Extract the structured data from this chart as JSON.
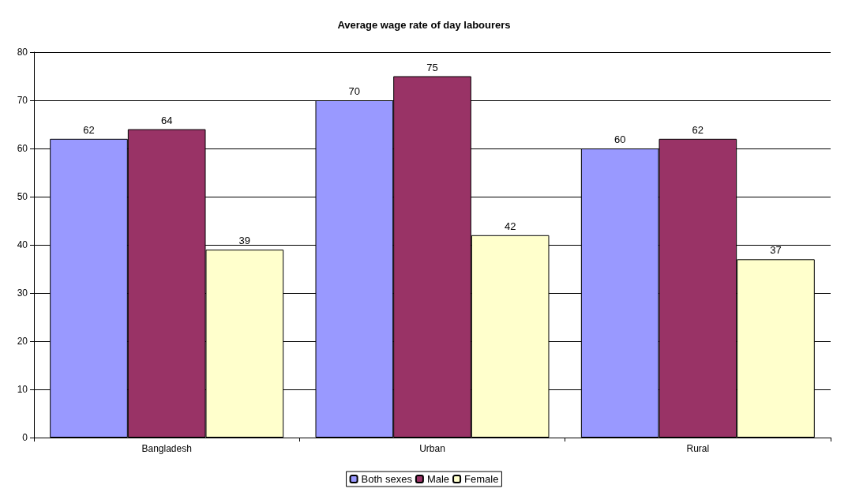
{
  "chart_data": {
    "type": "bar",
    "title": "Average wage rate of day labourers",
    "categories": [
      "Bangladesh",
      "Urban",
      "Rural"
    ],
    "series": [
      {
        "name": "Both sexes",
        "color": "#9999ff",
        "values": [
          62,
          70,
          60
        ]
      },
      {
        "name": "Male",
        "color": "#993366",
        "values": [
          64,
          75,
          62
        ]
      },
      {
        "name": "Female",
        "color": "#ffffcc",
        "values": [
          39,
          42,
          37
        ]
      }
    ],
    "ylim": [
      0,
      80
    ],
    "yticks": [
      0,
      10,
      20,
      30,
      40,
      50,
      60,
      70,
      80
    ],
    "grid": "y",
    "legend": "bottom",
    "data_labels": true
  }
}
